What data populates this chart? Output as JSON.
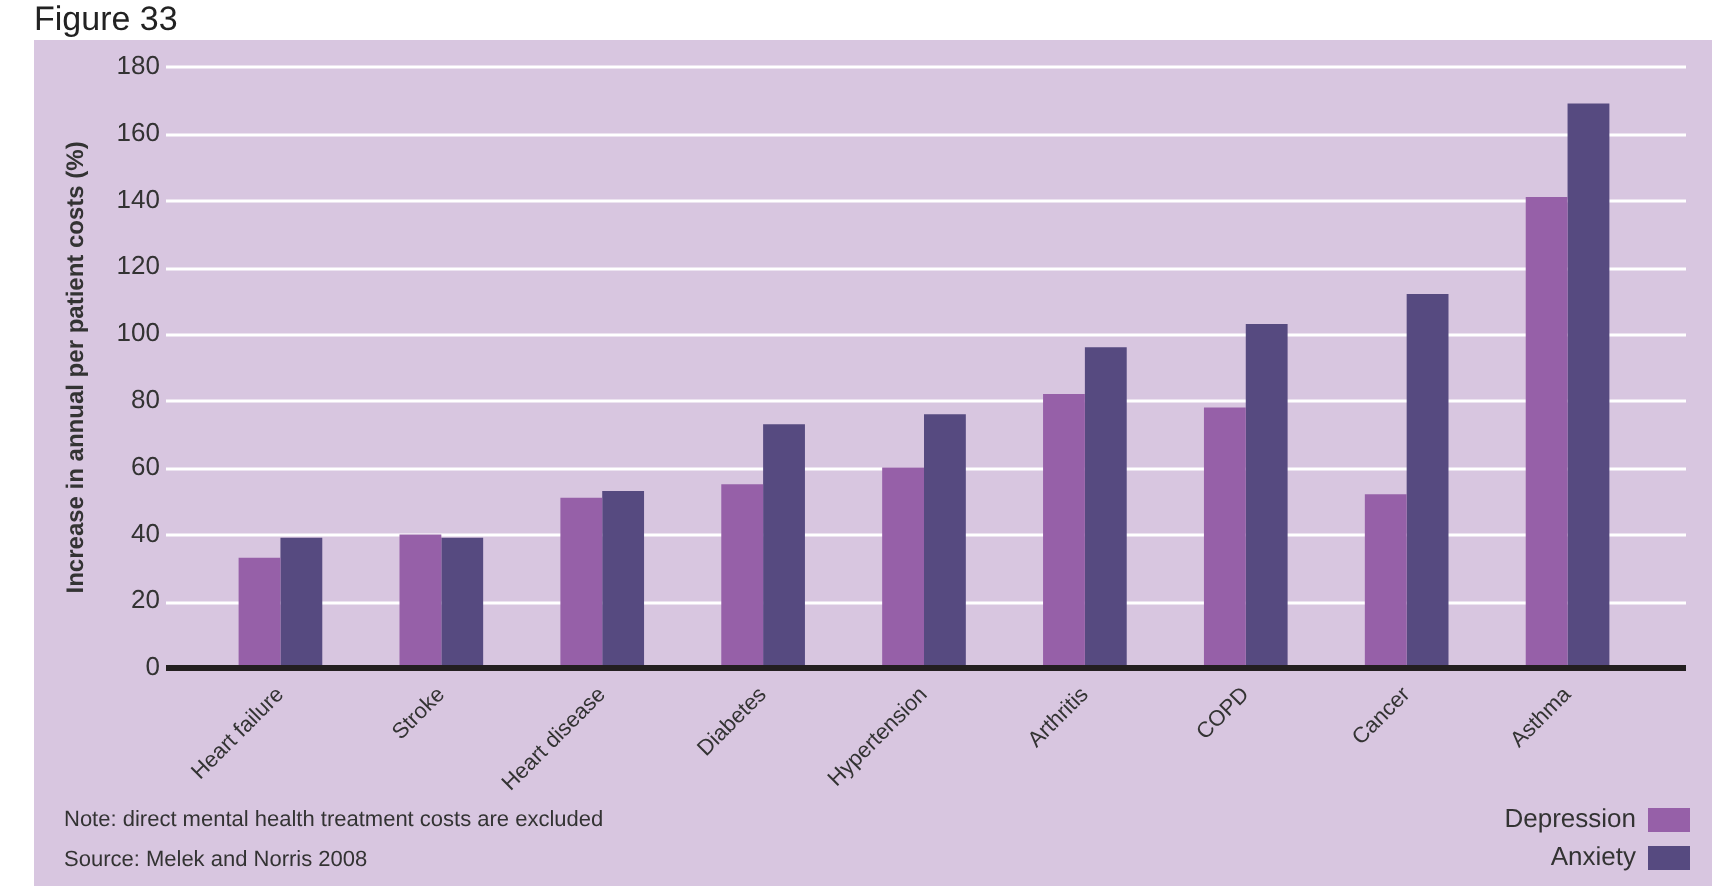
{
  "chart_data": {
    "type": "bar",
    "title": "Figure 33",
    "ylabel": "Increase in annual per patient costs (%)",
    "categories": [
      "Heart failure",
      "Stroke",
      "Heart disease",
      "Diabetes",
      "Hypertension",
      "Arthritis",
      "COPD",
      "Cancer",
      "Asthma"
    ],
    "series": [
      {
        "name": "Depression",
        "color": "#9660a8",
        "values": [
          33,
          40,
          51,
          55,
          60,
          82,
          78,
          52,
          141
        ]
      },
      {
        "name": "Anxiety",
        "color": "#564a80",
        "values": [
          39,
          39,
          53,
          73,
          76,
          96,
          103,
          112,
          169
        ]
      }
    ],
    "ylim": [
      0,
      180
    ],
    "yticks": [
      0,
      20,
      40,
      60,
      80,
      100,
      120,
      140,
      160,
      180
    ],
    "grid": "y",
    "legend": "bottom right",
    "annotations": [
      "Note: direct mental health treatment costs are excluded",
      "Source: Melek and Norris 2008"
    ]
  }
}
